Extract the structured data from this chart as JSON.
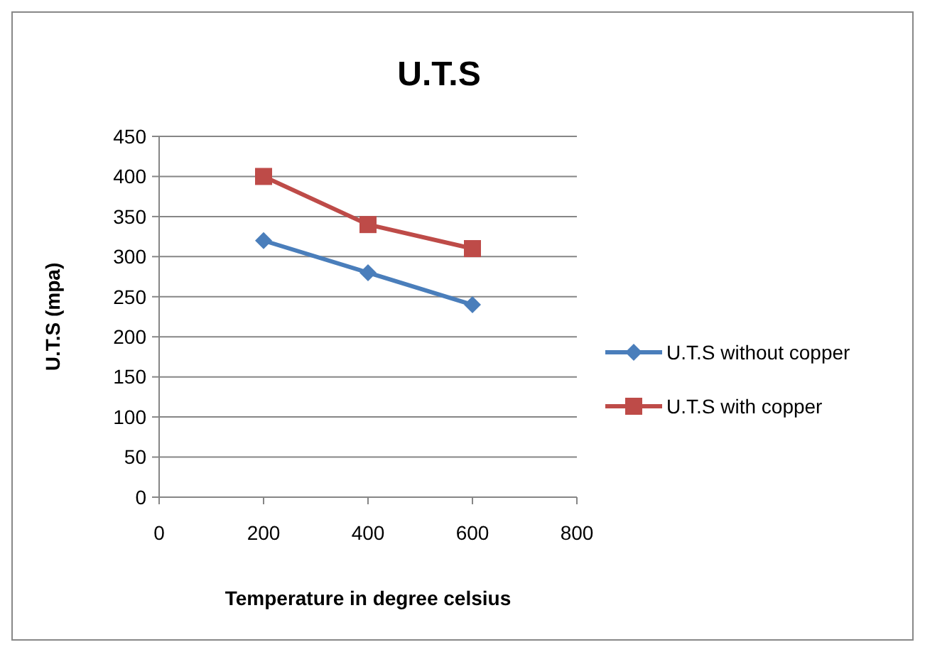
{
  "chart_data": {
    "type": "line",
    "title": "U.T.S",
    "xlabel": "Temperature in degree celsius",
    "ylabel": "U.T.S (mpa)",
    "x": [
      200,
      400,
      600
    ],
    "series": [
      {
        "name": "U.T.S without copper",
        "color": "#4a7ebb",
        "values": [
          320,
          280,
          240
        ],
        "marker": "diamond"
      },
      {
        "name": "U.T.S with copper",
        "color": "#be4b48",
        "values": [
          400,
          340,
          310
        ],
        "marker": "square"
      }
    ],
    "xlim": [
      0,
      800
    ],
    "xticks": [
      0,
      200,
      400,
      600,
      800
    ],
    "ylim": [
      0,
      450
    ],
    "yticks": [
      0,
      50,
      100,
      150,
      200,
      250,
      300,
      350,
      400,
      450
    ],
    "grid": "y",
    "legend": "right",
    "line_style": "solid"
  }
}
